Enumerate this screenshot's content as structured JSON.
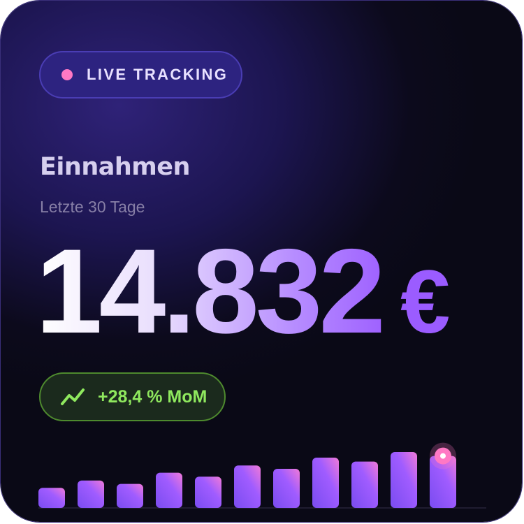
{
  "badge": {
    "label": "LIVE TRACKING",
    "dot_color": "#ff78c4"
  },
  "title": "Einnahmen",
  "subtitle": "Letzte 30 Tage",
  "amount": {
    "value": "14.832",
    "currency": "€"
  },
  "change": {
    "label": "+28,4 % MoM",
    "icon": "trending-up-icon",
    "color": "#8fe85e"
  },
  "chart_data": {
    "type": "bar",
    "values": [
      36,
      49,
      43,
      63,
      56,
      76,
      70,
      90,
      83,
      100,
      93
    ],
    "highlight_last": true,
    "colors": {
      "bar_start": "#7a4cf0",
      "bar_mid": "#a05cff",
      "bar_end": "#f07ad8",
      "marker": "#ff78c4"
    }
  }
}
